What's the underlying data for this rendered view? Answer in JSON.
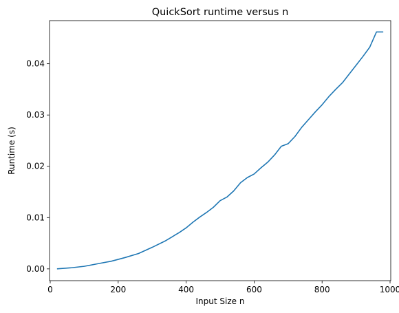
{
  "chart_data": {
    "type": "line",
    "title": "QuickSort runtime versus n",
    "xlabel": "Input Size n",
    "ylabel": "Runtime (s)",
    "xlim": [
      -2,
      1002
    ],
    "ylim": [
      -0.0023,
      0.0484
    ],
    "xticks": [
      0,
      200,
      400,
      600,
      800,
      1000
    ],
    "xtick_labels": [
      "0",
      "200",
      "400",
      "600",
      "800",
      "1000"
    ],
    "yticks": [
      0.0,
      0.01,
      0.02,
      0.03,
      0.04
    ],
    "ytick_labels": [
      "0.00",
      "0.01",
      "0.02",
      "0.03",
      "0.04"
    ],
    "grid": false,
    "series": [
      {
        "color": "#1f77b4",
        "x": [
          20,
          60,
          100,
          140,
          180,
          220,
          260,
          300,
          340,
          360,
          380,
          400,
          420,
          440,
          460,
          480,
          500,
          520,
          540,
          560,
          580,
          600,
          620,
          640,
          660,
          680,
          700,
          720,
          740,
          760,
          780,
          800,
          820,
          840,
          860,
          880,
          900,
          920,
          940,
          960,
          980
        ],
        "y": [
          0.0,
          0.0002,
          0.0005,
          0.001,
          0.0015,
          0.0022,
          0.003,
          0.0042,
          0.0055,
          0.0063,
          0.0071,
          0.008,
          0.0091,
          0.0101,
          0.011,
          0.012,
          0.0133,
          0.014,
          0.0152,
          0.0168,
          0.0178,
          0.0185,
          0.0197,
          0.0208,
          0.0222,
          0.0239,
          0.0244,
          0.0258,
          0.0276,
          0.0291,
          0.0306,
          0.032,
          0.0336,
          0.035,
          0.0363,
          0.038,
          0.0397,
          0.0414,
          0.0432,
          0.0462,
          0.0462
        ]
      }
    ]
  }
}
